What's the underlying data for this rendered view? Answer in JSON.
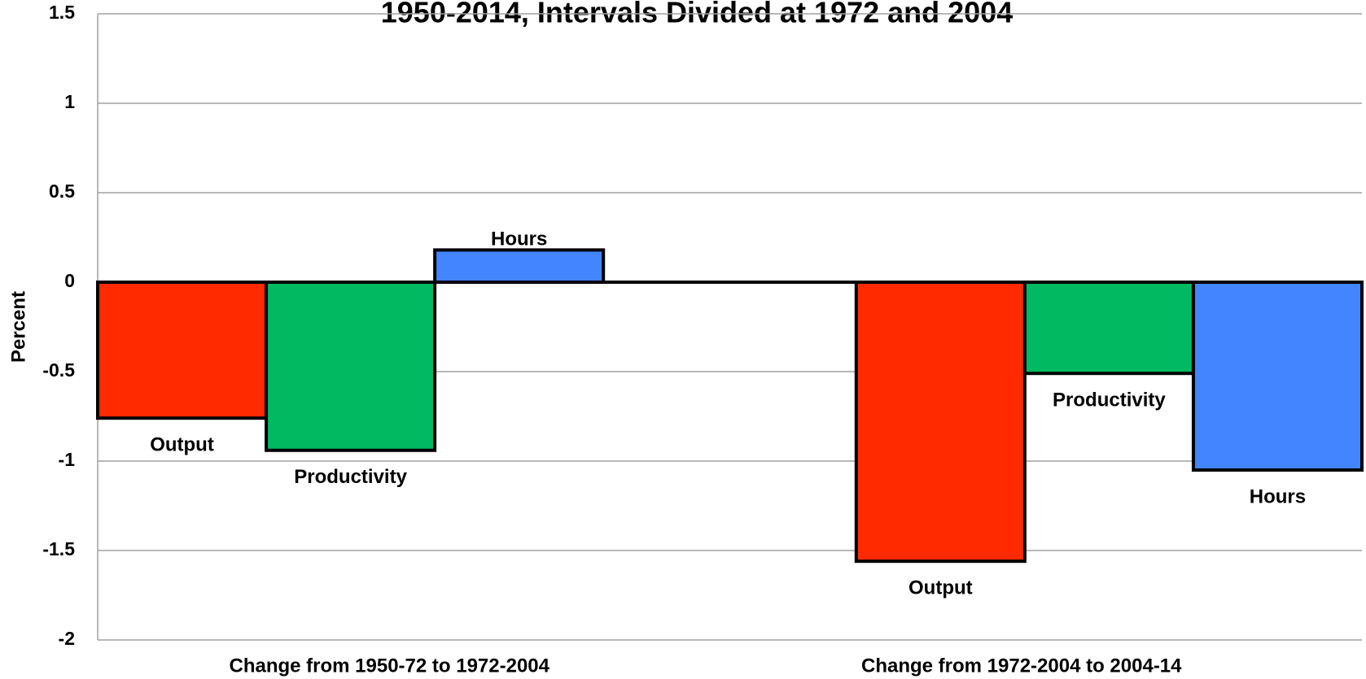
{
  "chart_data": {
    "type": "bar",
    "title": "1950-2014, Intervals Divided at 1972 and 2004",
    "y_label": "Percent",
    "categories": [
      "Change from 1950-72 to 1972-2004",
      "Change from 1972-2004 to 2004-14"
    ],
    "series": [
      {
        "name": "Output",
        "color": "#ff2a00",
        "values": [
          -0.76,
          -1.56
        ]
      },
      {
        "name": "Productivity",
        "color": "#00b960",
        "values": [
          -0.94,
          -0.51
        ]
      },
      {
        "name": "Hours",
        "color": "#4285ff",
        "values": [
          0.18,
          -1.05
        ]
      }
    ],
    "ylim": [
      -2,
      1.5
    ],
    "yticks": [
      -2,
      -1.5,
      -1,
      -0.5,
      0,
      0.5,
      1,
      1.5
    ],
    "grid": true
  }
}
